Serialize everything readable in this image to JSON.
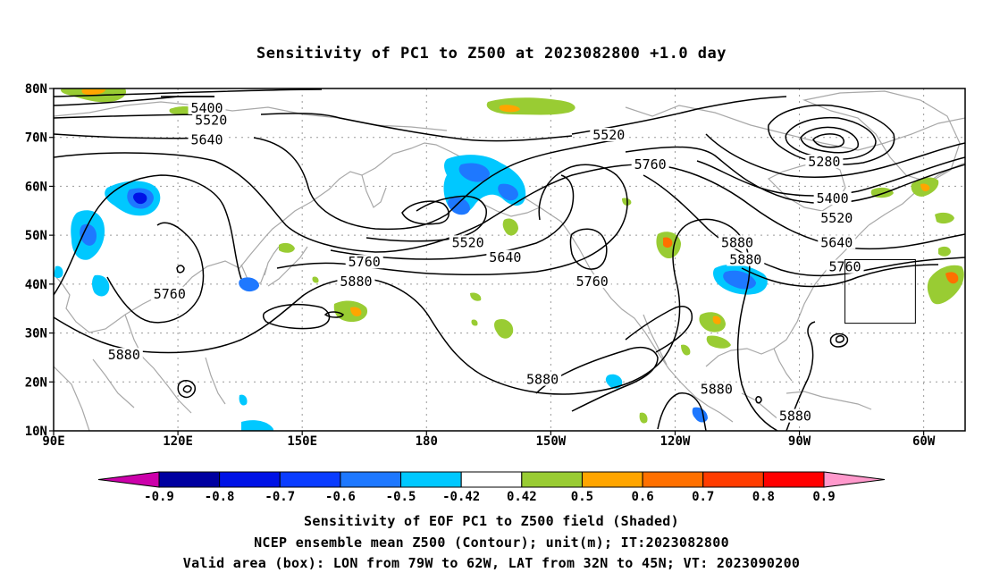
{
  "title": "Sensitivity of PC1 to Z500 at 2023082800 +1.0 day",
  "axes": {
    "lat_labels": [
      "80N",
      "70N",
      "60N",
      "50N",
      "40N",
      "30N",
      "20N",
      "10N"
    ],
    "lon_labels": [
      "90E",
      "120E",
      "150E",
      "180",
      "150W",
      "120W",
      "90W",
      "60W"
    ],
    "lat_range": [
      10,
      80
    ],
    "lon_range_east": [
      90,
      310
    ],
    "grid": "dotted"
  },
  "contour_labels": [
    {
      "text": "5400",
      "lon": 127,
      "lat": 76
    },
    {
      "text": "5520",
      "lon": 128,
      "lat": 73.5
    },
    {
      "text": "5640",
      "lon": 127,
      "lat": 69.5
    },
    {
      "text": "5520",
      "lon": 224,
      "lat": 70.5
    },
    {
      "text": "5760",
      "lon": 234,
      "lat": 64.5
    },
    {
      "text": "5280",
      "lon": 276,
      "lat": 65
    },
    {
      "text": "5400",
      "lon": 278,
      "lat": 57.5
    },
    {
      "text": "5520",
      "lon": 279,
      "lat": 53.5
    },
    {
      "text": "5640",
      "lon": 279,
      "lat": 48.5
    },
    {
      "text": "5760",
      "lon": 281,
      "lat": 43.5
    },
    {
      "text": "5520",
      "lon": 190,
      "lat": 48.5
    },
    {
      "text": "5640",
      "lon": 199,
      "lat": 45.5
    },
    {
      "text": "5760",
      "lon": 165,
      "lat": 44.5
    },
    {
      "text": "5880",
      "lon": 163,
      "lat": 40.5
    },
    {
      "text": "5760",
      "lon": 118,
      "lat": 38
    },
    {
      "text": "5880",
      "lon": 107,
      "lat": 25.5
    },
    {
      "text": "5760",
      "lon": 220,
      "lat": 40.5
    },
    {
      "text": "5880",
      "lon": 255,
      "lat": 48.5
    },
    {
      "text": "5880",
      "lon": 257,
      "lat": 45
    },
    {
      "text": "5880",
      "lon": 208,
      "lat": 20.5
    },
    {
      "text": "5880",
      "lon": 250,
      "lat": 18.5
    },
    {
      "text": "5880",
      "lon": 269,
      "lat": 13
    }
  ],
  "colorbar": {
    "labels": [
      "-0.9",
      "-0.8",
      "-0.7",
      "-0.6",
      "-0.5",
      "-0.42",
      "0.42",
      "0.5",
      "0.6",
      "0.7",
      "0.8",
      "0.9"
    ],
    "colors": [
      "#0000a0",
      "#0012e6",
      "#0a3cff",
      "#1e78ff",
      "#00c8ff",
      "#ffffff",
      "#99cc33",
      "#ffa500",
      "#ff7000",
      "#ff3c00",
      "#ff0000"
    ],
    "low_extend_color": "#cc00aa",
    "high_extend_color": "#ff99cc"
  },
  "valid_area_box": {
    "lon": [
      -79,
      -62
    ],
    "lat": [
      32,
      45
    ]
  },
  "captions": {
    "line1": "Sensitivity of EOF PC1 to Z500 field (Shaded)",
    "line2": "NCEP ensemble mean Z500 (Contour); unit(m); IT:2023082800",
    "line3": "Valid area (box): LON from 79W to 62W, LAT from 32N to 45N; VT: 2023090200"
  },
  "colors": {
    "coast": "#a8a8a8",
    "contour": "#000000",
    "grid": "#9a9a9a"
  }
}
